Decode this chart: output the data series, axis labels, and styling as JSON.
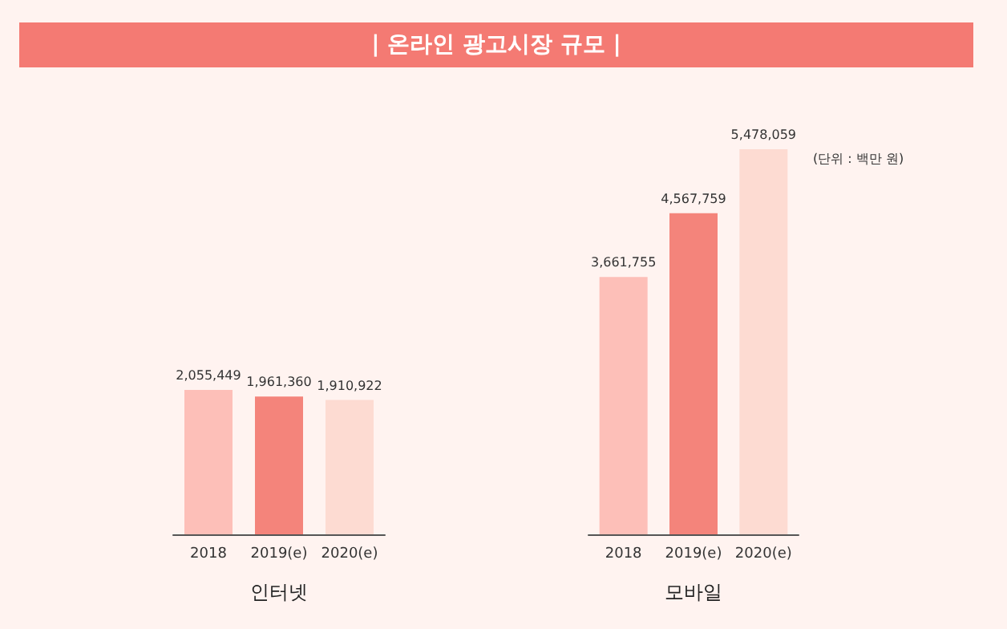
{
  "chart_data": [
    {
      "type": "bar",
      "title": "| 온라인 광고시장 규모 |",
      "xlabel": "인터넷",
      "categories": [
        "2018",
        "2019(e)",
        "2020(e)"
      ],
      "values": [
        2055449,
        1961360,
        1910922
      ],
      "colors": [
        "#fdbfb8",
        "#f4847b",
        "#fddbd2"
      ],
      "value_labels": [
        "2,055,449",
        "1,961,360",
        "1,910,922"
      ]
    },
    {
      "type": "bar",
      "xlabel": "모바일",
      "categories": [
        "2018",
        "2019(e)",
        "2020(e)"
      ],
      "values": [
        3661755,
        4567759,
        5478059
      ],
      "colors": [
        "#fdbfb8",
        "#f4847b",
        "#fddbd2"
      ],
      "value_labels": [
        "3,661,755",
        "4,567,759",
        "5,478,059"
      ],
      "annotations": [
        "(단위 : 백만 원)"
      ]
    }
  ]
}
